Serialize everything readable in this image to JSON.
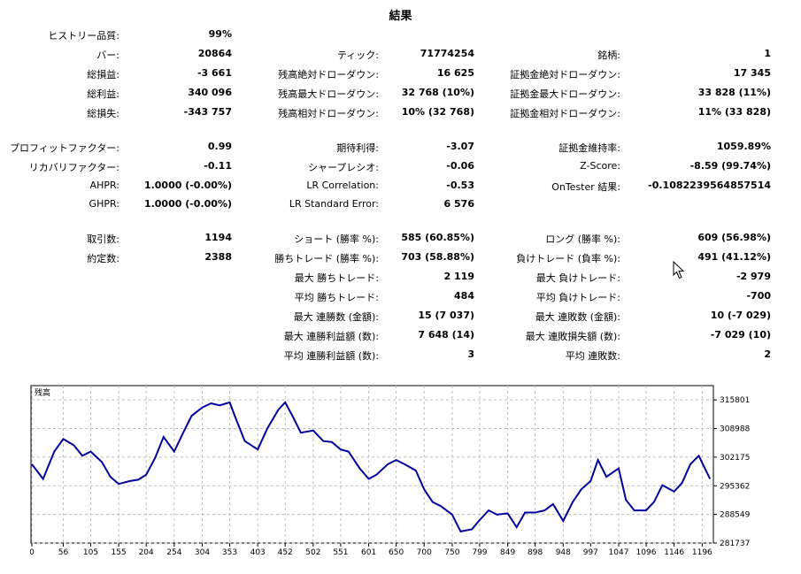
{
  "title": "結果",
  "col1": [
    {
      "label": "ヒストリー品質:",
      "value": "99%"
    },
    {
      "label": "バー:",
      "value": "20864"
    },
    {
      "label": "総損益:",
      "value": "-3 661"
    },
    {
      "label": "総利益:",
      "value": "340 096"
    },
    {
      "label": "総損失:",
      "value": "-343 757"
    },
    {
      "label": "プロフィットファクター:",
      "value": "0.99"
    },
    {
      "label": "リカバリファクター:",
      "value": "-0.11"
    },
    {
      "label": "AHPR:",
      "value": "1.0000 (-0.00%)"
    },
    {
      "label": "GHPR:",
      "value": "1.0000 (-0.00%)"
    },
    {
      "label": "取引数:",
      "value": "1194"
    },
    {
      "label": "約定数:",
      "value": "2388"
    }
  ],
  "col2": [
    {
      "label": "ティック:",
      "value": "71774254"
    },
    {
      "label": "残高絶対ドローダウン:",
      "value": "16 625"
    },
    {
      "label": "残高最大ドローダウン:",
      "value": "32 768 (10%)"
    },
    {
      "label": "残高相対ドローダウン:",
      "value": "10% (32 768)"
    },
    {
      "label": "期待利得:",
      "value": "-3.07"
    },
    {
      "label": "シャープレシオ:",
      "value": "-0.06"
    },
    {
      "label": "LR Correlation:",
      "value": "-0.53"
    },
    {
      "label": "LR Standard Error:",
      "value": "6 576"
    },
    {
      "label": "ショート (勝率 %):",
      "value": "585 (60.85%)"
    },
    {
      "label": "勝ちトレード (勝率 %):",
      "value": "703 (58.88%)"
    },
    {
      "label": "最大 勝ちトレード:",
      "value": "2 119"
    },
    {
      "label": "平均 勝ちトレード:",
      "value": "484"
    },
    {
      "label": "最大 連勝数 (金額):",
      "value": "15 (7 037)"
    },
    {
      "label": "最大 連勝利益額 (数):",
      "value": "7 648 (14)"
    },
    {
      "label": "平均 連勝利益額 (数):",
      "value": "3"
    }
  ],
  "col3": [
    {
      "label": "銘柄:",
      "value": "1"
    },
    {
      "label": "証拠金絶対ドローダウン:",
      "value": "17 345"
    },
    {
      "label": "証拠金最大ドローダウン:",
      "value": "33 828 (11%)"
    },
    {
      "label": "証拠金相対ドローダウン:",
      "value": "11% (33 828)"
    },
    {
      "label": "証拠金維持率:",
      "value": "1059.89%"
    },
    {
      "label": "Z-Score:",
      "value": "-8.59 (99.74%)"
    },
    {
      "label": "OnTester 結果:",
      "value": "-0.1082239564857514"
    },
    {
      "label": "ロング (勝率 %):",
      "value": "609 (56.98%)"
    },
    {
      "label": "負けトレード (負率 %):",
      "value": "491 (41.12%)"
    },
    {
      "label": "最大 負けトレード:",
      "value": "-2 979"
    },
    {
      "label": "平均 負けトレード:",
      "value": "-700"
    },
    {
      "label": "最大 連敗数 (金額):",
      "value": "10 (-7 029)"
    },
    {
      "label": "最大 連敗損失額 (数):",
      "value": "-7 029 (10)"
    },
    {
      "label": "平均 連敗数:",
      "value": "2"
    }
  ],
  "chart_data": {
    "type": "line",
    "title": "残高",
    "xlabel": "",
    "ylabel": "",
    "xlim": [
      0,
      1216
    ],
    "ylim": [
      281737,
      319200
    ],
    "x_ticks": [
      "0",
      "56",
      "105",
      "155",
      "204",
      "254",
      "304",
      "353",
      "403",
      "452",
      "502",
      "551",
      "601",
      "650",
      "700",
      "750",
      "799",
      "849",
      "898",
      "948",
      "997",
      "1047",
      "1096",
      "1146",
      "1196"
    ],
    "y_ticks": [
      "315801",
      "308988",
      "302175",
      "295362",
      "288549",
      "281737"
    ],
    "grid": true,
    "line_color": "#0000a0",
    "series": [
      {
        "x": [
          0,
          20,
          40,
          56,
          75,
          90,
          105,
          125,
          140,
          155,
          175,
          190,
          204,
          220,
          235,
          254,
          270,
          285,
          304,
          320,
          335,
          353,
          365,
          380,
          403,
          420,
          440,
          452,
          465,
          480,
          502,
          520,
          535,
          551,
          565,
          585,
          601,
          615,
          635,
          650,
          665,
          685,
          700,
          715,
          730,
          750,
          765,
          785,
          799,
          815,
          830,
          849,
          865,
          880,
          898,
          915,
          930,
          948,
          965,
          980,
          997,
          1010,
          1025,
          1047,
          1060,
          1075,
          1096,
          1110,
          1125,
          1146,
          1160,
          1175,
          1190,
          1210
        ],
        "y": [
          300500,
          297000,
          303500,
          306500,
          305000,
          302500,
          303500,
          301000,
          297500,
          295800,
          296500,
          296800,
          298000,
          302000,
          307000,
          303500,
          308000,
          312000,
          314000,
          315000,
          314500,
          315200,
          311000,
          306000,
          304000,
          309000,
          313500,
          315200,
          312000,
          308000,
          308500,
          306000,
          305800,
          304000,
          303500,
          299500,
          297000,
          298000,
          300500,
          301500,
          300500,
          299000,
          294500,
          291500,
          290500,
          288500,
          284500,
          285000,
          287200,
          289500,
          288500,
          288800,
          285500,
          289000,
          289000,
          289500,
          291000,
          287000,
          291500,
          294500,
          296500,
          301500,
          297500,
          299500,
          292000,
          289500,
          289500,
          291500,
          295500,
          294000,
          296000,
          300500,
          302500,
          297000
        ]
      }
    ]
  }
}
